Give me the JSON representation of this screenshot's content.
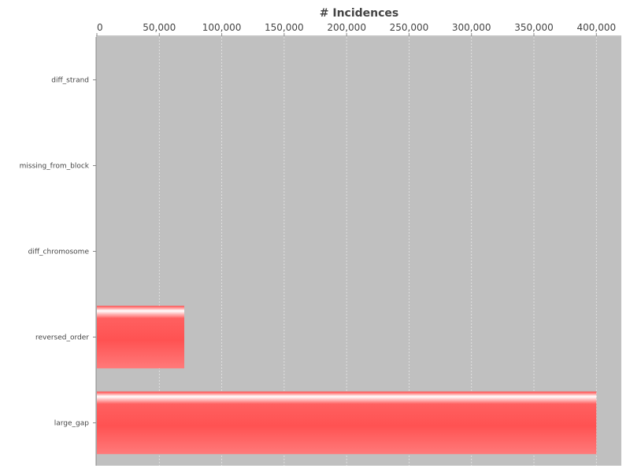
{
  "chart_data": {
    "type": "bar",
    "orientation": "horizontal",
    "title": "# Incidences",
    "xlabel": "",
    "ylabel": "",
    "xaxis_position": "top",
    "xlim": [
      0,
      420000
    ],
    "xticks": [
      0,
      50000,
      100000,
      150000,
      200000,
      250000,
      300000,
      350000,
      400000
    ],
    "xtick_labels": [
      "0",
      "50,000",
      "100,000",
      "150,000",
      "200,000",
      "250,000",
      "300,000",
      "350,000",
      "400,000"
    ],
    "categories": [
      "diff_strand",
      "missing_from_block",
      "diff_chromosome",
      "reversed_order",
      "large_gap"
    ],
    "values": [
      0,
      0,
      0,
      70000,
      400000
    ],
    "grid": true,
    "legend": "none",
    "colors": {
      "plot_background": "#c0c0c0",
      "bar": "#ff5555",
      "bar_highlight": "#ffffff",
      "gridline": "#e8e8e8",
      "axis": "#888888",
      "text": "#444444"
    }
  }
}
